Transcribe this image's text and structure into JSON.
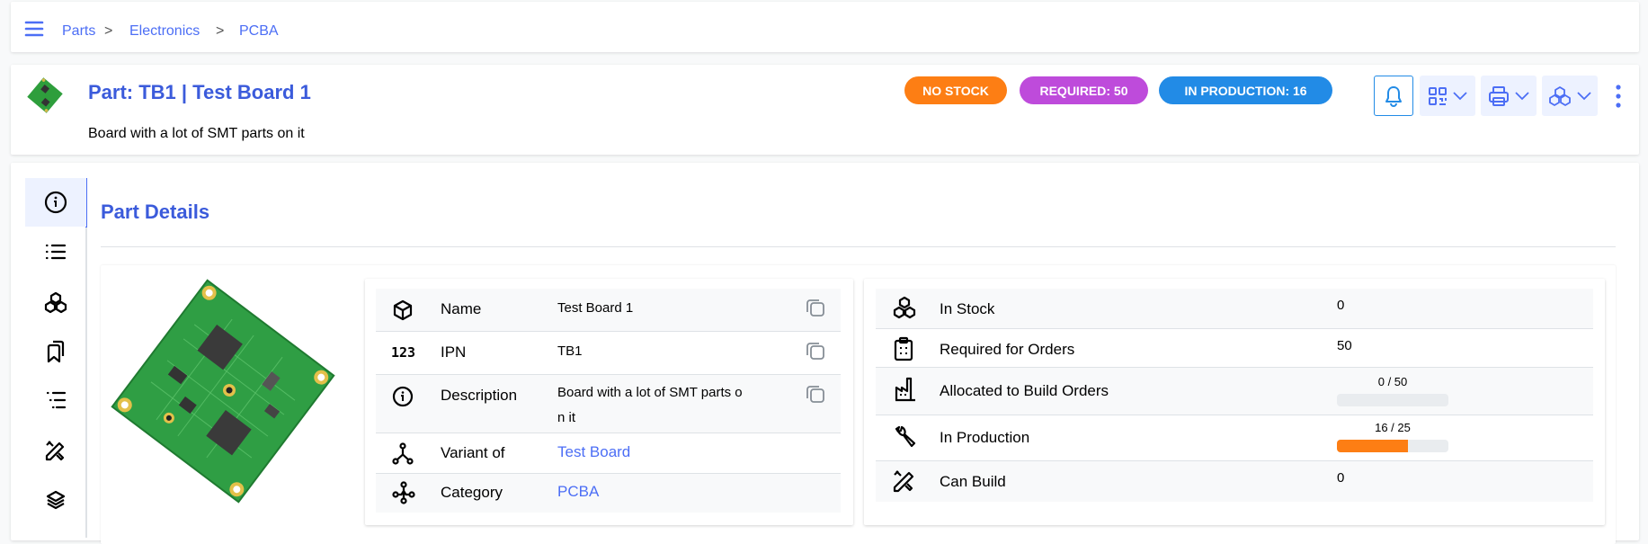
{
  "breadcrumb": [
    "Parts",
    "Electronics",
    "PCBA"
  ],
  "breadcrumb_separator": ">",
  "header": {
    "title": "Part: TB1 | Test Board 1",
    "subtitle": "Board with a lot of SMT parts on it",
    "badges": [
      {
        "label": "NO STOCK",
        "color": "#fd7e14"
      },
      {
        "label": "REQUIRED: 50",
        "color": "#be4bdb"
      },
      {
        "label": "IN PRODUCTION: 16",
        "color": "#228be6"
      }
    ],
    "actions": [
      "bell-icon",
      "qr-code-icon",
      "printer-icon",
      "stock-icon",
      "more-vertical-icon"
    ]
  },
  "sidebar": {
    "items": [
      "details",
      "parameters",
      "stock",
      "allocations",
      "bom",
      "build-orders",
      "variants"
    ],
    "active": 0
  },
  "main": {
    "title": "Part Details",
    "details": [
      {
        "icon": "box-icon",
        "label": "Name",
        "value": "Test Board 1",
        "copy": true
      },
      {
        "icon": "numbers-icon",
        "label": "IPN",
        "value": "TB1",
        "copy": true
      },
      {
        "icon": "info-icon",
        "label": "Description",
        "value": "Board with a lot of SMT parts o\nn it",
        "copy": true
      },
      {
        "icon": "variant-icon",
        "label": "Variant of",
        "value": "Test Board",
        "link": true
      },
      {
        "icon": "category-icon",
        "label": "Category",
        "value": "PCBA",
        "link": true
      }
    ],
    "stock": [
      {
        "icon": "stock-icon",
        "label": "In Stock",
        "value": "0"
      },
      {
        "icon": "clipboard-icon",
        "label": "Required for Orders",
        "value": "50"
      },
      {
        "icon": "factory-icon",
        "label": "Allocated to Build Orders",
        "progress_label": "0 / 50",
        "progress": 0
      },
      {
        "icon": "wrench-icon",
        "label": "In Production",
        "progress_label": "16 / 25",
        "progress": 0.64
      },
      {
        "icon": "tools-icon",
        "label": "Can Build",
        "value": "0"
      }
    ]
  },
  "colors": {
    "accent": "#4c6ef5",
    "title": "#3b5bdb",
    "progress": "#fd7e14"
  }
}
